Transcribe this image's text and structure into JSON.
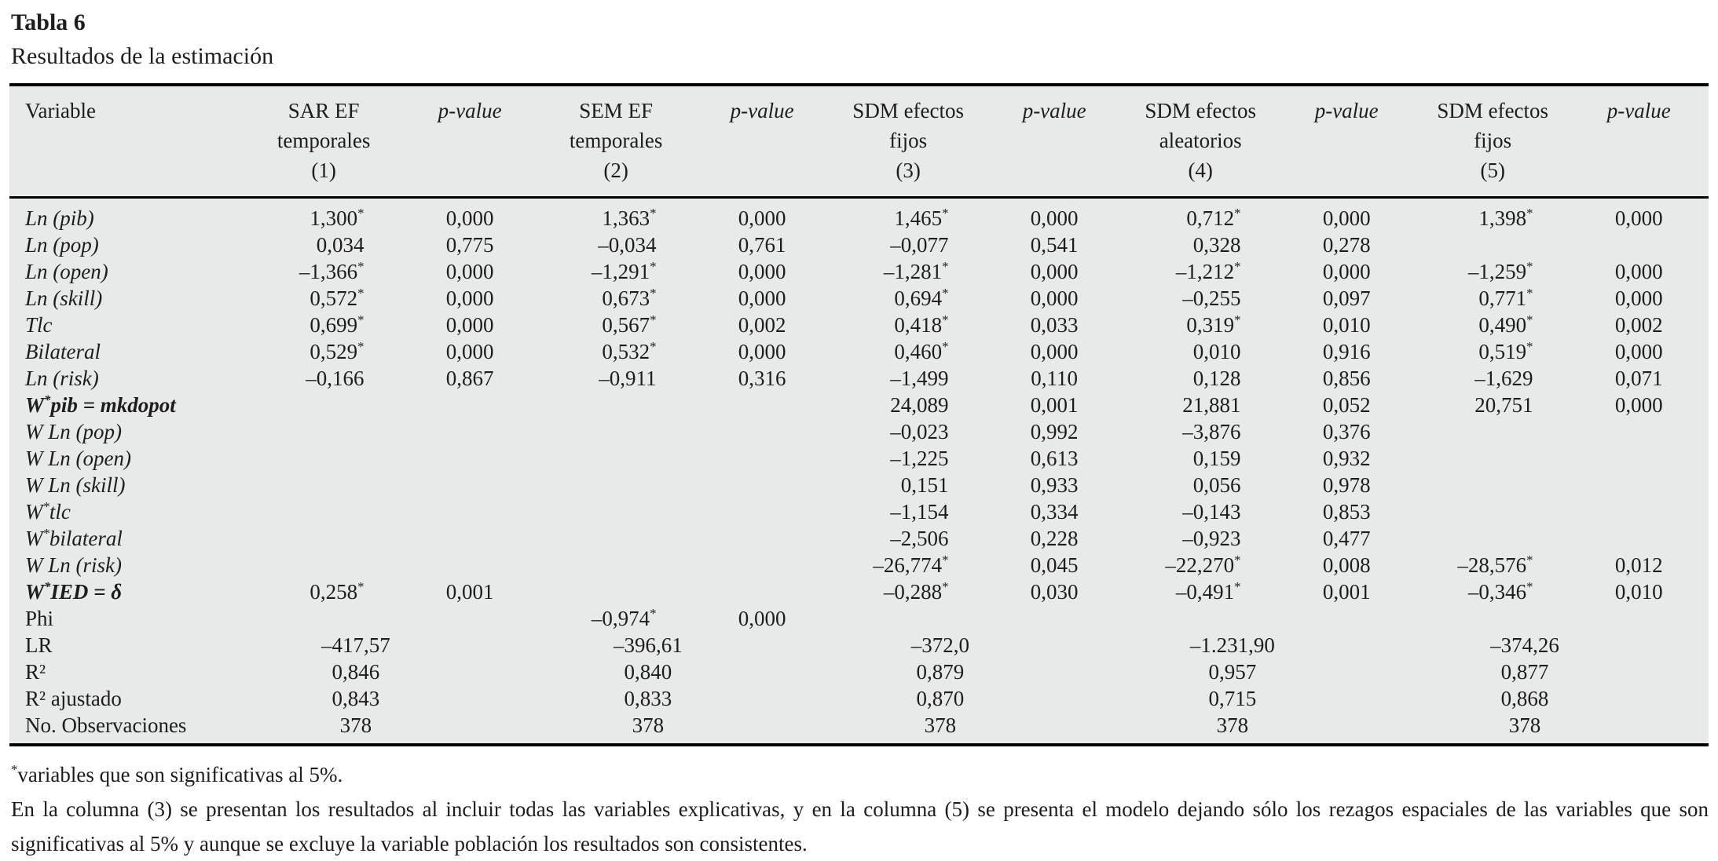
{
  "title": "Tabla 6",
  "subtitle": "Resultados de la estimación",
  "colors": {
    "table_bg": "#e8e9e9",
    "rule": "#000000",
    "text": "#1d1d1d"
  },
  "table": {
    "columns": [
      {
        "lines": [
          "Variable"
        ],
        "kind": "variable"
      },
      {
        "lines": [
          "SAR EF",
          "temporales",
          "(1)"
        ],
        "kind": "model"
      },
      {
        "lines": [
          "p-value"
        ],
        "kind": "pvalue",
        "italic": true
      },
      {
        "lines": [
          "SEM EF",
          "temporales",
          "(2)"
        ],
        "kind": "model"
      },
      {
        "lines": [
          "p-value"
        ],
        "kind": "pvalue",
        "italic": true
      },
      {
        "lines": [
          "SDM efectos",
          "fijos",
          "(3)"
        ],
        "kind": "model"
      },
      {
        "lines": [
          "p-value"
        ],
        "kind": "pvalue",
        "italic": true
      },
      {
        "lines": [
          "SDM efectos",
          "aleatorios",
          "(4)"
        ],
        "kind": "model"
      },
      {
        "lines": [
          "p-value"
        ],
        "kind": "pvalue",
        "italic": true
      },
      {
        "lines": [
          "SDM efectos",
          "fijos",
          "(5)"
        ],
        "kind": "model"
      },
      {
        "lines": [
          "p-value"
        ],
        "kind": "pvalue",
        "italic": true
      }
    ],
    "rows": [
      {
        "label": "Ln (pib)",
        "style": "italic",
        "values": [
          "1,300*",
          "0,000",
          "1,363*",
          "0,000",
          "1,465*",
          "0,000",
          "0,712*",
          "0,000",
          "1,398*",
          "0,000"
        ]
      },
      {
        "label": "Ln (pop)",
        "style": "italic",
        "values": [
          "0,034",
          "0,775",
          "–0,034",
          "0,761",
          "–0,077",
          "0,541",
          "0,328",
          "0,278",
          "",
          ""
        ]
      },
      {
        "label": "Ln (open)",
        "style": "italic",
        "values": [
          "–1,366*",
          "0,000",
          "–1,291*",
          "0,000",
          "–1,281*",
          "0,000",
          "–1,212*",
          "0,000",
          "–1,259*",
          "0,000"
        ]
      },
      {
        "label": "Ln (skill)",
        "style": "italic",
        "values": [
          "0,572*",
          "0,000",
          "0,673*",
          "0,000",
          "0,694*",
          "0,000",
          "–0,255",
          "0,097",
          "0,771*",
          "0,000"
        ]
      },
      {
        "label": "Tlc",
        "style": "italic",
        "values": [
          "0,699*",
          "0,000",
          "0,567*",
          "0,002",
          "0,418*",
          "0,033",
          "0,319*",
          "0,010",
          "0,490*",
          "0,002"
        ]
      },
      {
        "label": "Bilateral",
        "style": "italic",
        "values": [
          "0,529*",
          "0,000",
          "0,532*",
          "0,000",
          "0,460*",
          "0,000",
          "0,010",
          "0,916",
          "0,519*",
          "0,000"
        ]
      },
      {
        "label": "Ln (risk)",
        "style": "italic",
        "values": [
          "–0,166",
          "0,867",
          "–0,911",
          "0,316",
          "–1,499",
          "0,110",
          "0,128",
          "0,856",
          "–1,629",
          "0,071"
        ]
      },
      {
        "label": "W*pib = mkdopot",
        "style": "bolditalic",
        "values": [
          "",
          "",
          "",
          "",
          "24,089",
          "0,001",
          "21,881",
          "0,052",
          "20,751",
          "0,000"
        ]
      },
      {
        "label": "W Ln (pop)",
        "style": "italic",
        "values": [
          "",
          "",
          "",
          "",
          "–0,023",
          "0,992",
          "–3,876",
          "0,376",
          "",
          ""
        ]
      },
      {
        "label": "W Ln (open)",
        "style": "italic",
        "values": [
          "",
          "",
          "",
          "",
          "–1,225",
          "0,613",
          "0,159",
          "0,932",
          "",
          ""
        ]
      },
      {
        "label": "W Ln (skill)",
        "style": "italic",
        "values": [
          "",
          "",
          "",
          "",
          "0,151",
          "0,933",
          "0,056",
          "0,978",
          "",
          ""
        ]
      },
      {
        "label": "W*tlc",
        "style": "italic",
        "values": [
          "",
          "",
          "",
          "",
          "–1,154",
          "0,334",
          "–0,143",
          "0,853",
          "",
          ""
        ]
      },
      {
        "label": "W*bilateral",
        "style": "italic",
        "values": [
          "",
          "",
          "",
          "",
          "–2,506",
          "0,228",
          "–0,923",
          "0,477",
          "",
          ""
        ]
      },
      {
        "label": "W Ln (risk)",
        "style": "italic",
        "values": [
          "",
          "",
          "",
          "",
          "–26,774*",
          "0,045",
          "–22,270*",
          "0,008",
          "–28,576*",
          "0,012"
        ]
      },
      {
        "label": "W*IED = δ",
        "style": "bolditalic",
        "values": [
          "0,258*",
          "0,001",
          "",
          "",
          "–0,288*",
          "0,030",
          "–0,491*",
          "0,001",
          "–0,346*",
          "0,010"
        ]
      },
      {
        "label": "Phi",
        "style": "roman",
        "values": [
          "",
          "",
          "–0,974*",
          "0,000",
          "",
          "",
          "",
          "",
          "",
          ""
        ]
      }
    ],
    "summary_rows": [
      {
        "label": "LR",
        "values": [
          "–417,57",
          "–396,61",
          "–372,0",
          "–1.231,90",
          "–374,26"
        ]
      },
      {
        "label": "R²",
        "values": [
          "0,846",
          "0,840",
          "0,879",
          "0,957",
          "0,877"
        ]
      },
      {
        "label": "R² ajustado",
        "values": [
          "0,843",
          "0,833",
          "0,870",
          "0,715",
          "0,868"
        ]
      },
      {
        "label": "No. Observaciones",
        "values": [
          "378",
          "378",
          "378",
          "378",
          "378"
        ]
      }
    ]
  },
  "footnotes": [
    "*variables que son significativas al 5%.",
    "En la columna (3) se presentan los resultados al incluir todas las variables explicativas, y en la columna (5) se presenta el modelo dejando sólo los rezagos espaciales de las variables que son significativas al 5% y aunque se excluye la variable población los resultados son consistentes."
  ]
}
